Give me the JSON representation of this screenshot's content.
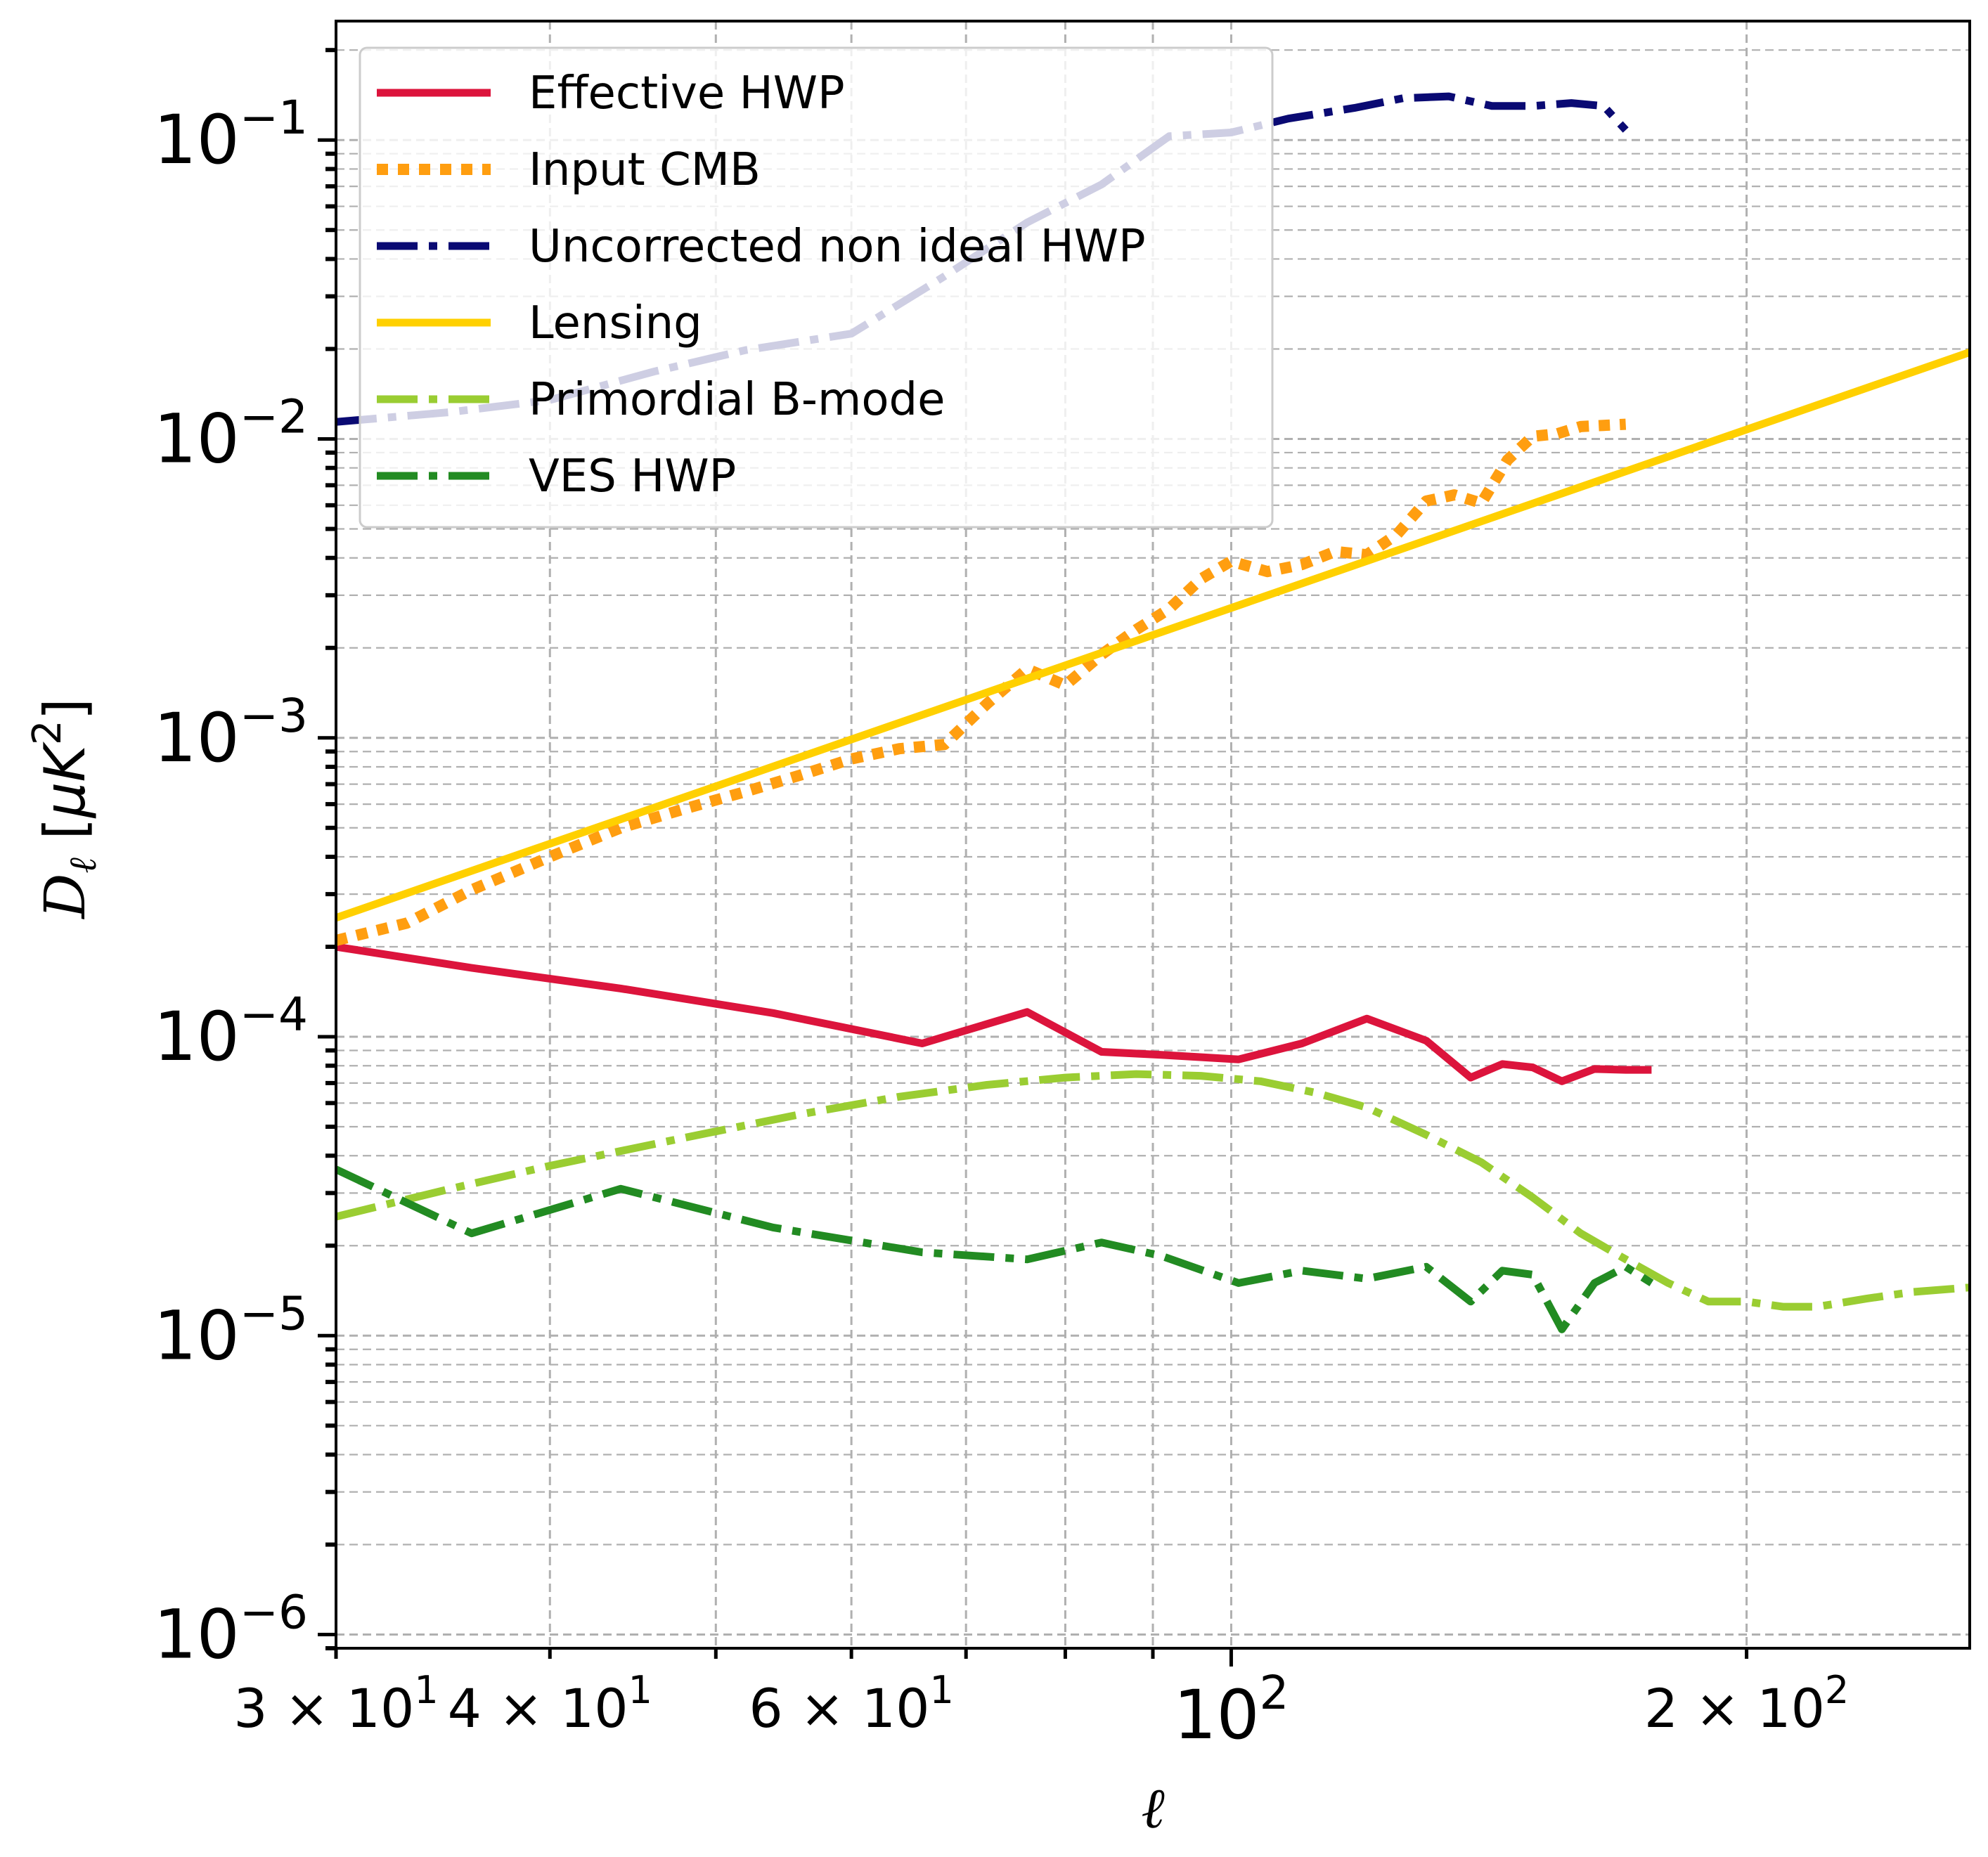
{
  "chart_data": {
    "type": "line",
    "title": "",
    "xlabel": "ℓ",
    "ylabel": "D_ℓ [μK²]",
    "xscale": "log",
    "yscale": "log",
    "xlim": [
      30,
      270
    ],
    "ylim": [
      9e-07,
      0.25
    ],
    "grid": true,
    "legend_position": "top-left",
    "x_tick_labels": [
      {
        "x": 30,
        "base": "3",
        "mant": "× 10",
        "exp": "1"
      },
      {
        "x": 40,
        "base": "4",
        "mant": "× 10",
        "exp": "1"
      },
      {
        "x": 60,
        "base": "6",
        "mant": "× 10",
        "exp": "1"
      },
      {
        "x": 100,
        "base": "",
        "mant": "10",
        "exp": "2"
      },
      {
        "x": 200,
        "base": "2",
        "mant": "× 10",
        "exp": "2"
      }
    ],
    "y_tick_labels": [
      {
        "y": 0.1,
        "mant": "10",
        "exp": "−1"
      },
      {
        "y": 0.01,
        "mant": "10",
        "exp": "−2"
      },
      {
        "y": 0.001,
        "mant": "10",
        "exp": "−3"
      },
      {
        "y": 0.0001,
        "mant": "10",
        "exp": "−4"
      },
      {
        "y": 1e-05,
        "mant": "10",
        "exp": "−5"
      },
      {
        "y": 1e-06,
        "mant": "10",
        "exp": "−6"
      }
    ],
    "series": [
      {
        "name": "Effective HWP",
        "color": "#dc143c",
        "style": "solid",
        "x": [
          30,
          36,
          44,
          54,
          66,
          76,
          84,
          91,
          101,
          110,
          120,
          130,
          138,
          144,
          150,
          156,
          163,
          170,
          176
        ],
        "y": [
          0.0002,
          0.00017,
          0.000145,
          0.00012,
          9.5e-05,
          0.000121,
          8.9e-05,
          8.7e-05,
          8.4e-05,
          9.5e-05,
          0.000115,
          9.7e-05,
          7.3e-05,
          8.1e-05,
          7.9e-05,
          7.1e-05,
          7.8e-05,
          7.75e-05,
          7.75e-05
        ]
      },
      {
        "name": "Input CMB",
        "color": "#ff9e10",
        "style": "dotted",
        "x": [
          30,
          33,
          36,
          40,
          44,
          48,
          52,
          56,
          60,
          64,
          68,
          72,
          76,
          80,
          84,
          88,
          92,
          96,
          100,
          105,
          110,
          115,
          120,
          125,
          130,
          135,
          140,
          145,
          150,
          155,
          160,
          165,
          170
        ],
        "y": [
          0.00021,
          0.00024,
          0.00031,
          0.0004,
          0.0005,
          0.00058,
          0.00066,
          0.00075,
          0.00085,
          0.00092,
          0.00095,
          0.0013,
          0.0017,
          0.0015,
          0.0019,
          0.0023,
          0.0027,
          0.0034,
          0.0039,
          0.0036,
          0.0038,
          0.0042,
          0.0041,
          0.0048,
          0.0062,
          0.0065,
          0.0061,
          0.0085,
          0.0102,
          0.0104,
          0.011,
          0.0111,
          0.0112
        ]
      },
      {
        "name": "Uncorrected non ideal HWP",
        "color": "#0a0a73",
        "style": "dashdot",
        "x": [
          30,
          35,
          40,
          46,
          52,
          60,
          68,
          76,
          84,
          92,
          100,
          108,
          118,
          126,
          134,
          142,
          150,
          158,
          165,
          170
        ],
        "y": [
          0.0114,
          0.0123,
          0.0135,
          0.0168,
          0.0198,
          0.0225,
          0.035,
          0.053,
          0.071,
          0.103,
          0.106,
          0.118,
          0.128,
          0.138,
          0.14,
          0.13,
          0.13,
          0.133,
          0.13,
          0.108
        ]
      },
      {
        "name": "Lensing",
        "color": "#ffd000",
        "style": "solid",
        "x": [
          30,
          270
        ],
        "y": [
          0.00025,
          0.0195
        ]
      },
      {
        "name": "Primordial B-mode",
        "color": "#9acd32",
        "style": "dashdot",
        "x": [
          30,
          35,
          40,
          48,
          56,
          64,
          72,
          80,
          88,
          96,
          104,
          112,
          120,
          130,
          140,
          150,
          160,
          170,
          180,
          190,
          200,
          210,
          220,
          235,
          250,
          270
        ],
        "y": [
          2.5e-05,
          3.1e-05,
          3.7e-05,
          4.6e-05,
          5.5e-05,
          6.3e-05,
          6.9e-05,
          7.3e-05,
          7.5e-05,
          7.4e-05,
          7.1e-05,
          6.5e-05,
          5.8e-05,
          4.7e-05,
          3.8e-05,
          2.9e-05,
          2.2e-05,
          1.8e-05,
          1.5e-05,
          1.3e-05,
          1.3e-05,
          1.25e-05,
          1.25e-05,
          1.33e-05,
          1.4e-05,
          1.45e-05
        ]
      },
      {
        "name": "VES HWP",
        "color": "#228b22",
        "style": "dashdot",
        "x": [
          30,
          36,
          44,
          54,
          66,
          76,
          84,
          91,
          101,
          110,
          120,
          130,
          138,
          144,
          150,
          156,
          163,
          170,
          176
        ],
        "y": [
          3.6e-05,
          2.2e-05,
          3.1e-05,
          2.3e-05,
          1.9e-05,
          1.8e-05,
          2.05e-05,
          1.85e-05,
          1.5e-05,
          1.65e-05,
          1.55e-05,
          1.7e-05,
          1.3e-05,
          1.65e-05,
          1.6e-05,
          1.05e-05,
          1.5e-05,
          1.7e-05,
          1.5e-05
        ]
      }
    ]
  }
}
